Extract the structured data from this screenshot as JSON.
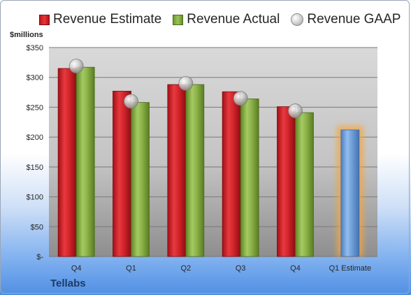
{
  "legend": {
    "estimate": "Revenue Estimate",
    "actual": "Revenue Actual",
    "gaap": "Revenue GAAP"
  },
  "units_label": "$millions",
  "company": "Tellabs",
  "colors": {
    "estimate": "#d7262c",
    "actual": "#8db249",
    "gaap": "#bdbdbd",
    "highlight_bar": "#6f9fd8",
    "highlight_glow": "#f4a640"
  },
  "chart_data": {
    "type": "bar",
    "categories": [
      "Q4",
      "Q1",
      "Q2",
      "Q3",
      "Q4",
      "Q1 Estimate"
    ],
    "series": [
      {
        "name": "Revenue Estimate",
        "values": [
          315,
          277,
          288,
          276,
          251,
          null
        ]
      },
      {
        "name": "Revenue Actual",
        "values": [
          317,
          258,
          288,
          264,
          241,
          212
        ]
      },
      {
        "name": "Revenue GAAP",
        "values": [
          319,
          260,
          290,
          265,
          244,
          null
        ]
      }
    ],
    "yticks": [
      {
        "value": 0,
        "label": "$-"
      },
      {
        "value": 50,
        "label": "$50"
      },
      {
        "value": 100,
        "label": "$100"
      },
      {
        "value": 150,
        "label": "$150"
      },
      {
        "value": 200,
        "label": "$200"
      },
      {
        "value": 250,
        "label": "$250"
      },
      {
        "value": 300,
        "label": "$300"
      },
      {
        "value": 350,
        "label": "$350"
      }
    ],
    "ylim": [
      0,
      350
    ],
    "ylabel": "$millions",
    "grid": true,
    "legend_position": "top"
  }
}
